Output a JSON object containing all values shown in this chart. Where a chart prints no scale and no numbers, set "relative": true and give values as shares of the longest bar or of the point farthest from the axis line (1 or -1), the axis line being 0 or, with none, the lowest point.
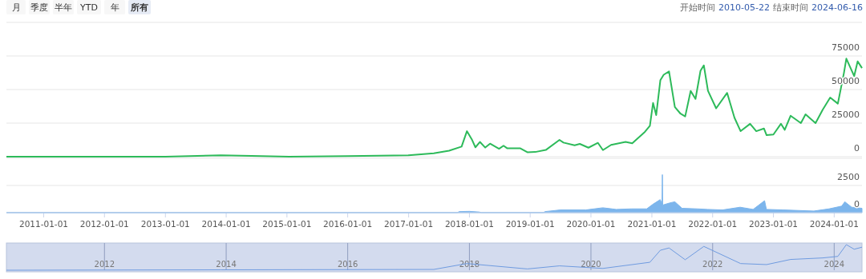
{
  "chart_data": [
    {
      "type": "line",
      "color": "#2dba5a",
      "annotations": [
        "月",
        "季度",
        "半年",
        "YTD",
        "年",
        "所有",
        "开始时间",
        "2010-05-22",
        "结束时间",
        "2024-06-16"
      ],
      "xlim": [
        "2010-05-22",
        "2024-06-16"
      ],
      "ylim": [
        0,
        100000
      ],
      "yticks": [
        0,
        25000,
        50000,
        75000,
        {
          "value": 100000,
          "label": null
        }
      ],
      "grid": "y",
      "tick_labels": "y",
      "x": [
        "2010-05-22",
        "2013-01-01",
        "2013-11-30",
        "2014-06-01",
        "2015-01-15",
        "2016-01-01",
        "2016-12-31",
        "2017-06-01",
        "2017-09-01",
        "2017-11-15",
        "2017-12-17",
        "2018-01-15",
        "2018-02-06",
        "2018-03-05",
        "2018-04-06",
        "2018-05-05",
        "2018-06-28",
        "2018-07-25",
        "2018-08-15",
        "2018-11-01",
        "2018-12-15",
        "2019-02-01",
        "2019-04-05",
        "2019-06-26",
        "2019-07-20",
        "2019-09-25",
        "2019-10-26",
        "2019-12-17",
        "2020-02-12",
        "2020-03-13",
        "2020-05-01",
        "2020-07-27",
        "2020-09-05",
        "2020-11-20",
        "2020-12-20",
        "2021-01-08",
        "2021-01-27",
        "2021-02-21",
        "2021-03-13",
        "2021-04-14",
        "2021-05-19",
        "2021-06-22",
        "2021-07-20",
        "2021-08-22",
        "2021-09-20",
        "2021-10-20",
        "2021-11-09",
        "2021-12-04",
        "2022-01-22",
        "2022-03-29",
        "2022-05-12",
        "2022-06-18",
        "2022-08-14",
        "2022-09-20",
        "2022-11-05",
        "2022-11-21",
        "2023-01-01",
        "2023-02-15",
        "2023-03-10",
        "2023-04-14",
        "2023-06-15",
        "2023-07-13",
        "2023-09-11",
        "2023-10-24",
        "2023-12-08",
        "2024-01-23",
        "2024-02-28",
        "2024-03-14",
        "2024-04-30",
        "2024-05-21",
        "2024-06-16"
      ],
      "values": [
        0,
        0,
        1000,
        600,
        0,
        500,
        1000,
        2500,
        4500,
        7500,
        19000,
        13000,
        7000,
        11000,
        6800,
        9700,
        5900,
        8200,
        6300,
        6300,
        3300,
        3500,
        5000,
        12500,
        10500,
        8500,
        9500,
        6700,
        10300,
        4900,
        8800,
        11000,
        10000,
        18500,
        23000,
        40000,
        31000,
        57000,
        61000,
        63500,
        37000,
        32000,
        30000,
        49000,
        43000,
        64000,
        68000,
        49000,
        36000,
        47500,
        29000,
        19000,
        24500,
        19000,
        21000,
        16000,
        16500,
        24500,
        20000,
        30500,
        25000,
        31500,
        25000,
        35000,
        44000,
        39500,
        62000,
        73000,
        60000,
        71000,
        66000
      ]
    },
    {
      "type": "area",
      "color": "#7cb5ec",
      "xlim": [
        "2010-05-22",
        "2024-06-16"
      ],
      "ylim": [
        0,
        5000
      ],
      "yticks": [
        0,
        2500,
        {
          "value": 5000,
          "label": null
        }
      ],
      "grid": "y",
      "xticks": [
        {
          "value": "2011-01-01",
          "label": "2011-01-01"
        },
        {
          "value": "2012-01-01",
          "label": "2012-01-01"
        },
        {
          "value": "2013-01-01",
          "label": "2013-01-01"
        },
        {
          "value": "2014-01-01",
          "label": "2014-01-01"
        },
        {
          "value": "2015-01-01",
          "label": "2015-01-01"
        },
        {
          "value": "2016-01-01",
          "label": "2016-01-01"
        },
        {
          "value": "2017-01-01",
          "label": "2017-01-01"
        },
        {
          "value": "2018-01-01",
          "label": "2018-01-01"
        },
        {
          "value": "2019-01-01",
          "label": "2019-01-01"
        },
        {
          "value": "2020-01-01",
          "label": "2020-01-01"
        },
        {
          "value": "2021-01-01",
          "label": "2021-01-01"
        },
        {
          "value": "2022-01-01",
          "label": "2022-01-01"
        },
        {
          "value": "2023-01-01",
          "label": "2023-01-01"
        },
        {
          "value": "2024-01-01",
          "label": "2024-01-01"
        }
      ],
      "x": [
        "2010-05-22",
        "2017-10-20",
        "2017-11-01",
        "2018-01-01",
        "2018-03-01",
        "2018-03-15",
        "2019-03-20",
        "2019-04-01",
        "2019-07-01",
        "2019-12-01",
        "2020-03-12",
        "2020-06-01",
        "2020-09-01",
        "2020-12-01",
        "2021-01-10",
        "2021-02-20",
        "2021-03-03",
        "2021-03-05",
        "2021-03-07",
        "2021-04-20",
        "2021-05-19",
        "2021-07-01",
        "2021-10-01",
        "2021-12-01",
        "2022-03-01",
        "2022-06-15",
        "2022-09-01",
        "2022-11-09",
        "2022-11-20",
        "2023-03-01",
        "2023-06-01",
        "2023-09-01",
        "2023-12-01",
        "2024-02-15",
        "2024-03-05",
        "2024-04-15",
        "2024-06-16"
      ],
      "values": [
        0,
        0,
        100,
        120,
        60,
        0,
        0,
        100,
        250,
        250,
        450,
        300,
        350,
        350,
        800,
        1200,
        800,
        3500,
        700,
        900,
        1000,
        400,
        350,
        300,
        250,
        500,
        300,
        1100,
        300,
        250,
        200,
        150,
        350,
        600,
        1000,
        500,
        400
      ]
    },
    {
      "type": "line",
      "color": "#6f9be0",
      "relative": true,
      "tick_labels": "x",
      "xlim": [
        "2010-05-22",
        "2024-06-16"
      ],
      "grid": "x",
      "xticks": [
        {
          "value": "2012-01-01",
          "label": "2012"
        },
        {
          "value": "2014-01-01",
          "label": "2014"
        },
        {
          "value": "2016-01-01",
          "label": "2016"
        },
        {
          "value": "2018-01-01",
          "label": "2018"
        },
        {
          "value": "2020-01-01",
          "label": "2020"
        },
        {
          "value": "2022-01-01",
          "label": "2022"
        },
        {
          "value": "2024-01-01",
          "label": "2024"
        }
      ],
      "x": [
        "2010-05-22",
        "2013-11-30",
        "2017-06-01",
        "2017-12-17",
        "2018-12-15",
        "2019-06-26",
        "2020-03-13",
        "2020-12-20",
        "2021-02-21",
        "2021-04-14",
        "2021-07-20",
        "2021-11-09",
        "2022-06-18",
        "2022-11-21",
        "2023-04-14",
        "2023-10-24",
        "2024-01-23",
        "2024-03-14",
        "2024-04-30",
        "2024-06-16"
      ],
      "values": [
        0,
        0.015,
        0.03,
        0.26,
        0.05,
        0.17,
        0.07,
        0.31,
        0.78,
        0.87,
        0.41,
        0.93,
        0.26,
        0.22,
        0.42,
        0.48,
        0.54,
        1,
        0.82,
        0.9
      ]
    }
  ]
}
